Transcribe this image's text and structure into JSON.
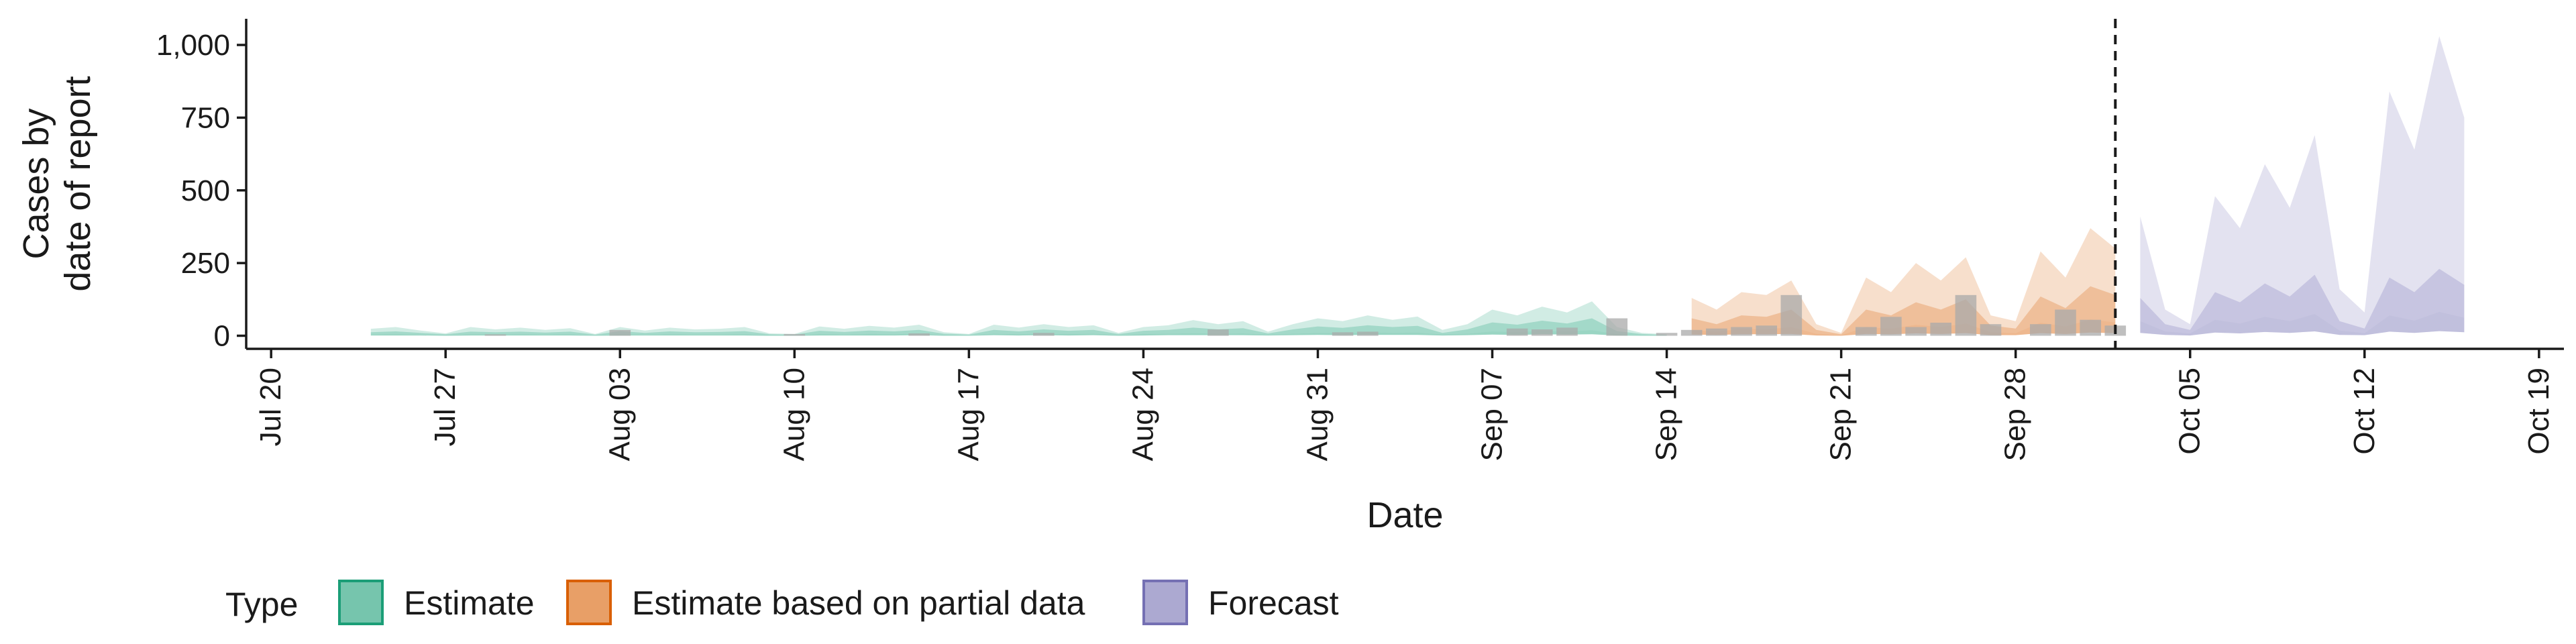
{
  "chart_data": {
    "type": "area",
    "xlabel": "Date",
    "ylabel": [
      "Cases by",
      "date of report"
    ],
    "x_axis": {
      "type": "date",
      "range": [
        "2020-07-19",
        "2020-10-20"
      ],
      "tick_dates": [
        "2020-07-20",
        "2020-07-27",
        "2020-08-03",
        "2020-08-10",
        "2020-08-17",
        "2020-08-24",
        "2020-08-31",
        "2020-09-07",
        "2020-09-14",
        "2020-09-21",
        "2020-09-28",
        "2020-10-05",
        "2020-10-12",
        "2020-10-19"
      ],
      "tick_labels": [
        "Jul 20",
        "Jul 27",
        "Aug 03",
        "Aug 10",
        "Aug 17",
        "Aug 24",
        "Aug 31",
        "Sep 07",
        "Sep 14",
        "Sep 21",
        "Sep 28",
        "Oct 05",
        "Oct 12",
        "Oct 19"
      ]
    },
    "y_axis": {
      "range": [
        -45,
        1090
      ],
      "tick_values": [
        0,
        250,
        500,
        750,
        1000
      ],
      "tick_labels": [
        "0",
        "250",
        "500",
        "750",
        "1,000"
      ]
    },
    "grid": false,
    "vline_date": "2020-10-02",
    "legend": {
      "title": "Type",
      "position": "bottom",
      "entries": [
        {
          "label": "Estimate",
          "color": "#1B9E77"
        },
        {
          "label": "Estimate based on partial data",
          "color": "#D95F02"
        },
        {
          "label": "Forecast",
          "color": "#7570B3"
        }
      ]
    },
    "series": [
      {
        "type": "Estimate",
        "color": "#1B9E77",
        "x": [
          "2020-07-24",
          "2020-07-25",
          "2020-07-26",
          "2020-07-27",
          "2020-07-28",
          "2020-07-29",
          "2020-07-30",
          "2020-07-31",
          "2020-08-01",
          "2020-08-02",
          "2020-08-03",
          "2020-08-04",
          "2020-08-05",
          "2020-08-06",
          "2020-08-07",
          "2020-08-08",
          "2020-08-09",
          "2020-08-10",
          "2020-08-11",
          "2020-08-12",
          "2020-08-13",
          "2020-08-14",
          "2020-08-15",
          "2020-08-16",
          "2020-08-17",
          "2020-08-18",
          "2020-08-19",
          "2020-08-20",
          "2020-08-21",
          "2020-08-22",
          "2020-08-23",
          "2020-08-24",
          "2020-08-25",
          "2020-08-26",
          "2020-08-27",
          "2020-08-28",
          "2020-08-29",
          "2020-08-30",
          "2020-08-31",
          "2020-09-01",
          "2020-09-02",
          "2020-09-03",
          "2020-09-04",
          "2020-09-05",
          "2020-09-06",
          "2020-09-07",
          "2020-09-08",
          "2020-09-09",
          "2020-09-10",
          "2020-09-11",
          "2020-09-12",
          "2020-09-13",
          "2020-09-14"
        ],
        "upper": [
          24,
          30,
          18,
          8,
          30,
          22,
          28,
          20,
          26,
          6,
          30,
          18,
          28,
          22,
          24,
          30,
          8,
          6,
          32,
          24,
          34,
          28,
          38,
          12,
          6,
          38,
          28,
          40,
          30,
          36,
          10,
          30,
          36,
          54,
          40,
          50,
          14,
          40,
          60,
          50,
          70,
          55,
          66,
          20,
          40,
          90,
          70,
          100,
          80,
          118,
          30,
          10,
          5
        ],
        "mid_upper": [
          12,
          15,
          10,
          5,
          14,
          12,
          14,
          11,
          14,
          4,
          16,
          10,
          15,
          12,
          13,
          16,
          5,
          4,
          17,
          13,
          18,
          15,
          20,
          7,
          4,
          20,
          15,
          22,
          17,
          20,
          6,
          17,
          20,
          28,
          22,
          26,
          8,
          22,
          32,
          27,
          36,
          30,
          34,
          10,
          22,
          46,
          38,
          52,
          42,
          60,
          16,
          6,
          3
        ],
        "mid_lower": [
          4,
          5,
          3,
          2,
          5,
          4,
          5,
          4,
          5,
          1,
          5,
          3,
          5,
          4,
          4,
          5,
          2,
          1,
          6,
          4,
          6,
          5,
          7,
          2,
          1,
          7,
          5,
          7,
          6,
          7,
          2,
          6,
          7,
          9,
          7,
          8,
          3,
          7,
          10,
          9,
          12,
          10,
          11,
          4,
          7,
          15,
          12,
          17,
          14,
          19,
          5,
          2,
          1
        ],
        "lower": [
          1,
          1,
          1,
          0,
          1,
          1,
          1,
          1,
          1,
          0,
          1,
          1,
          1,
          1,
          1,
          1,
          0,
          0,
          1,
          1,
          1,
          1,
          2,
          0,
          0,
          2,
          1,
          2,
          1,
          2,
          0,
          1,
          2,
          2,
          2,
          2,
          1,
          2,
          3,
          2,
          3,
          3,
          3,
          1,
          2,
          4,
          3,
          5,
          4,
          5,
          1,
          0,
          0
        ]
      },
      {
        "type": "Estimate based on partial data",
        "color": "#D95F02",
        "x": [
          "2020-09-15",
          "2020-09-16",
          "2020-09-17",
          "2020-09-18",
          "2020-09-19",
          "2020-09-20",
          "2020-09-21",
          "2020-09-22",
          "2020-09-23",
          "2020-09-24",
          "2020-09-25",
          "2020-09-26",
          "2020-09-27",
          "2020-09-28",
          "2020-09-29",
          "2020-09-30",
          "2020-10-01",
          "2020-10-02"
        ],
        "upper": [
          130,
          90,
          150,
          140,
          190,
          40,
          10,
          200,
          150,
          250,
          190,
          270,
          70,
          50,
          290,
          200,
          370,
          300
        ],
        "mid_upper": [
          60,
          40,
          70,
          65,
          90,
          20,
          5,
          90,
          70,
          115,
          90,
          125,
          35,
          25,
          135,
          95,
          170,
          140
        ],
        "mid_lower": [
          20,
          14,
          24,
          22,
          30,
          7,
          2,
          30,
          24,
          38,
          30,
          42,
          12,
          9,
          45,
          32,
          56,
          46
        ],
        "lower": [
          4,
          3,
          5,
          5,
          6,
          1,
          0,
          6,
          5,
          8,
          6,
          9,
          2,
          2,
          9,
          6,
          11,
          9
        ]
      },
      {
        "type": "Forecast",
        "color": "#7570B3",
        "x": [
          "2020-10-03",
          "2020-10-04",
          "2020-10-05",
          "2020-10-06",
          "2020-10-07",
          "2020-10-08",
          "2020-10-09",
          "2020-10-10",
          "2020-10-11",
          "2020-10-12",
          "2020-10-13",
          "2020-10-14",
          "2020-10-15",
          "2020-10-16"
        ],
        "upper": [
          410,
          90,
          40,
          480,
          370,
          590,
          440,
          690,
          160,
          80,
          840,
          640,
          1030,
          750
        ],
        "mid_upper": [
          130,
          40,
          20,
          150,
          115,
          180,
          135,
          210,
          50,
          25,
          200,
          150,
          230,
          175
        ],
        "mid_lower": [
          50,
          15,
          8,
          55,
          42,
          65,
          50,
          75,
          18,
          9,
          70,
          52,
          82,
          62
        ],
        "lower": [
          10,
          3,
          1,
          11,
          8,
          13,
          10,
          15,
          3,
          2,
          14,
          10,
          16,
          12
        ]
      }
    ],
    "observed_cases": {
      "color": "#a9a9a9",
      "x": [
        "2020-07-29",
        "2020-08-03",
        "2020-08-10",
        "2020-08-15",
        "2020-08-20",
        "2020-08-27",
        "2020-09-01",
        "2020-09-02",
        "2020-09-08",
        "2020-09-09",
        "2020-09-10",
        "2020-09-12",
        "2020-09-14",
        "2020-09-15",
        "2020-09-16",
        "2020-09-17",
        "2020-09-18",
        "2020-09-19",
        "2020-09-22",
        "2020-09-23",
        "2020-09-24",
        "2020-09-25",
        "2020-09-26",
        "2020-09-27",
        "2020-09-29",
        "2020-09-30",
        "2020-10-01",
        "2020-10-02"
      ],
      "y": [
        5,
        20,
        6,
        8,
        10,
        22,
        12,
        14,
        25,
        22,
        28,
        60,
        10,
        20,
        25,
        30,
        35,
        140,
        30,
        65,
        30,
        45,
        140,
        40,
        40,
        90,
        55,
        35
      ]
    }
  }
}
